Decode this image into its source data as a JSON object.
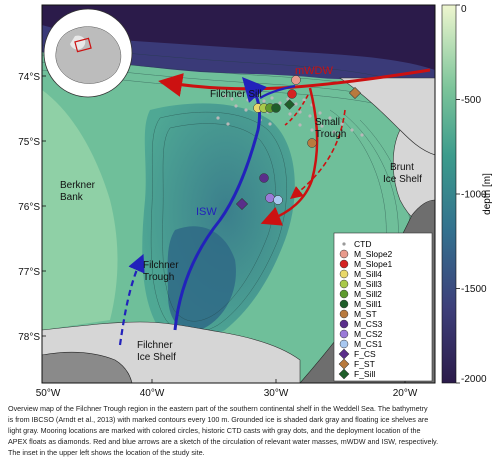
{
  "map": {
    "lat_ticks": [
      "74°S",
      "75°S",
      "76°S",
      "77°S",
      "78°S"
    ],
    "lon_ticks": [
      "50°W",
      "40°W",
      "30°W",
      "20°W"
    ],
    "places": {
      "filchner_sill": "Filchner Sill",
      "small_trough": [
        "Small",
        "Trough"
      ],
      "brunt_ice_shelf": [
        "Brunt",
        "Ice Shelf"
      ],
      "berkner_bank": [
        "Berkner",
        "Bank"
      ],
      "filchner_trough": [
        "Filchner",
        "Trough"
      ],
      "filchner_ice_shelf": [
        "Filchner",
        "Ice Shelf"
      ]
    },
    "water_masses": {
      "mwdw": "mWDW",
      "isw": "ISW"
    },
    "colors": {
      "mwdw_arrow": "#cc1111",
      "isw_arrow": "#2222bb",
      "deep": "#2b1b4a",
      "mid": "#4aa592",
      "shallow": "#e8f2c8",
      "grounded_ice": "#6e6e6e",
      "floating_ice": "#d6d6d6"
    }
  },
  "colorbar": {
    "label": "depth [m]",
    "ticks": [
      "0",
      "-500",
      "-1000",
      "-1500",
      "-2000"
    ],
    "range": [
      -2000,
      0
    ]
  },
  "legend": {
    "items": [
      {
        "label": "CTD",
        "marker": "dot",
        "color": "#999999"
      },
      {
        "label": "M_Slope2",
        "marker": "circle",
        "color": "#e89a8c"
      },
      {
        "label": "M_Slope1",
        "marker": "circle",
        "color": "#d42222"
      },
      {
        "label": "M_Sill4",
        "marker": "circle",
        "color": "#e8d86a"
      },
      {
        "label": "M_Sill3",
        "marker": "circle",
        "color": "#a9c94a"
      },
      {
        "label": "M_Sill2",
        "marker": "circle",
        "color": "#5e9a2e"
      },
      {
        "label": "M_Sill1",
        "marker": "circle",
        "color": "#1f5e2a"
      },
      {
        "label": "M_ST",
        "marker": "circle",
        "color": "#b87a3e"
      },
      {
        "label": "M_CS3",
        "marker": "circle",
        "color": "#5a2e8a"
      },
      {
        "label": "M_CS2",
        "marker": "circle",
        "color": "#9a7ad8"
      },
      {
        "label": "M_CS1",
        "marker": "circle",
        "color": "#a8c8f0"
      },
      {
        "label": "F_CS",
        "marker": "diamond",
        "color": "#5a2e8a"
      },
      {
        "label": "F_ST",
        "marker": "diamond",
        "color": "#b87a3e"
      },
      {
        "label": "F_Sill",
        "marker": "diamond",
        "color": "#1f5e2a"
      }
    ]
  },
  "caption": {
    "lines": [
      "Overview map of the Filchner Trough region in the eastern part of the southern continental shelf in the Weddell Sea. The bathymetry",
      "is from IBCSO (Arndt et al., 2013) with marked contours every 100 m. Grounded ice is shaded dark gray and floating ice shelves are",
      "light gray. Mooring locations are marked with colored circles, historic CTD casts with gray dots, and the deployment location of the",
      "APEX floats as diamonds. Red and blue arrows are a sketch of the circulation of relevant water masses, mWDW and ISW, respectively.",
      "The inset in the upper left shows the location of the study site."
    ]
  }
}
